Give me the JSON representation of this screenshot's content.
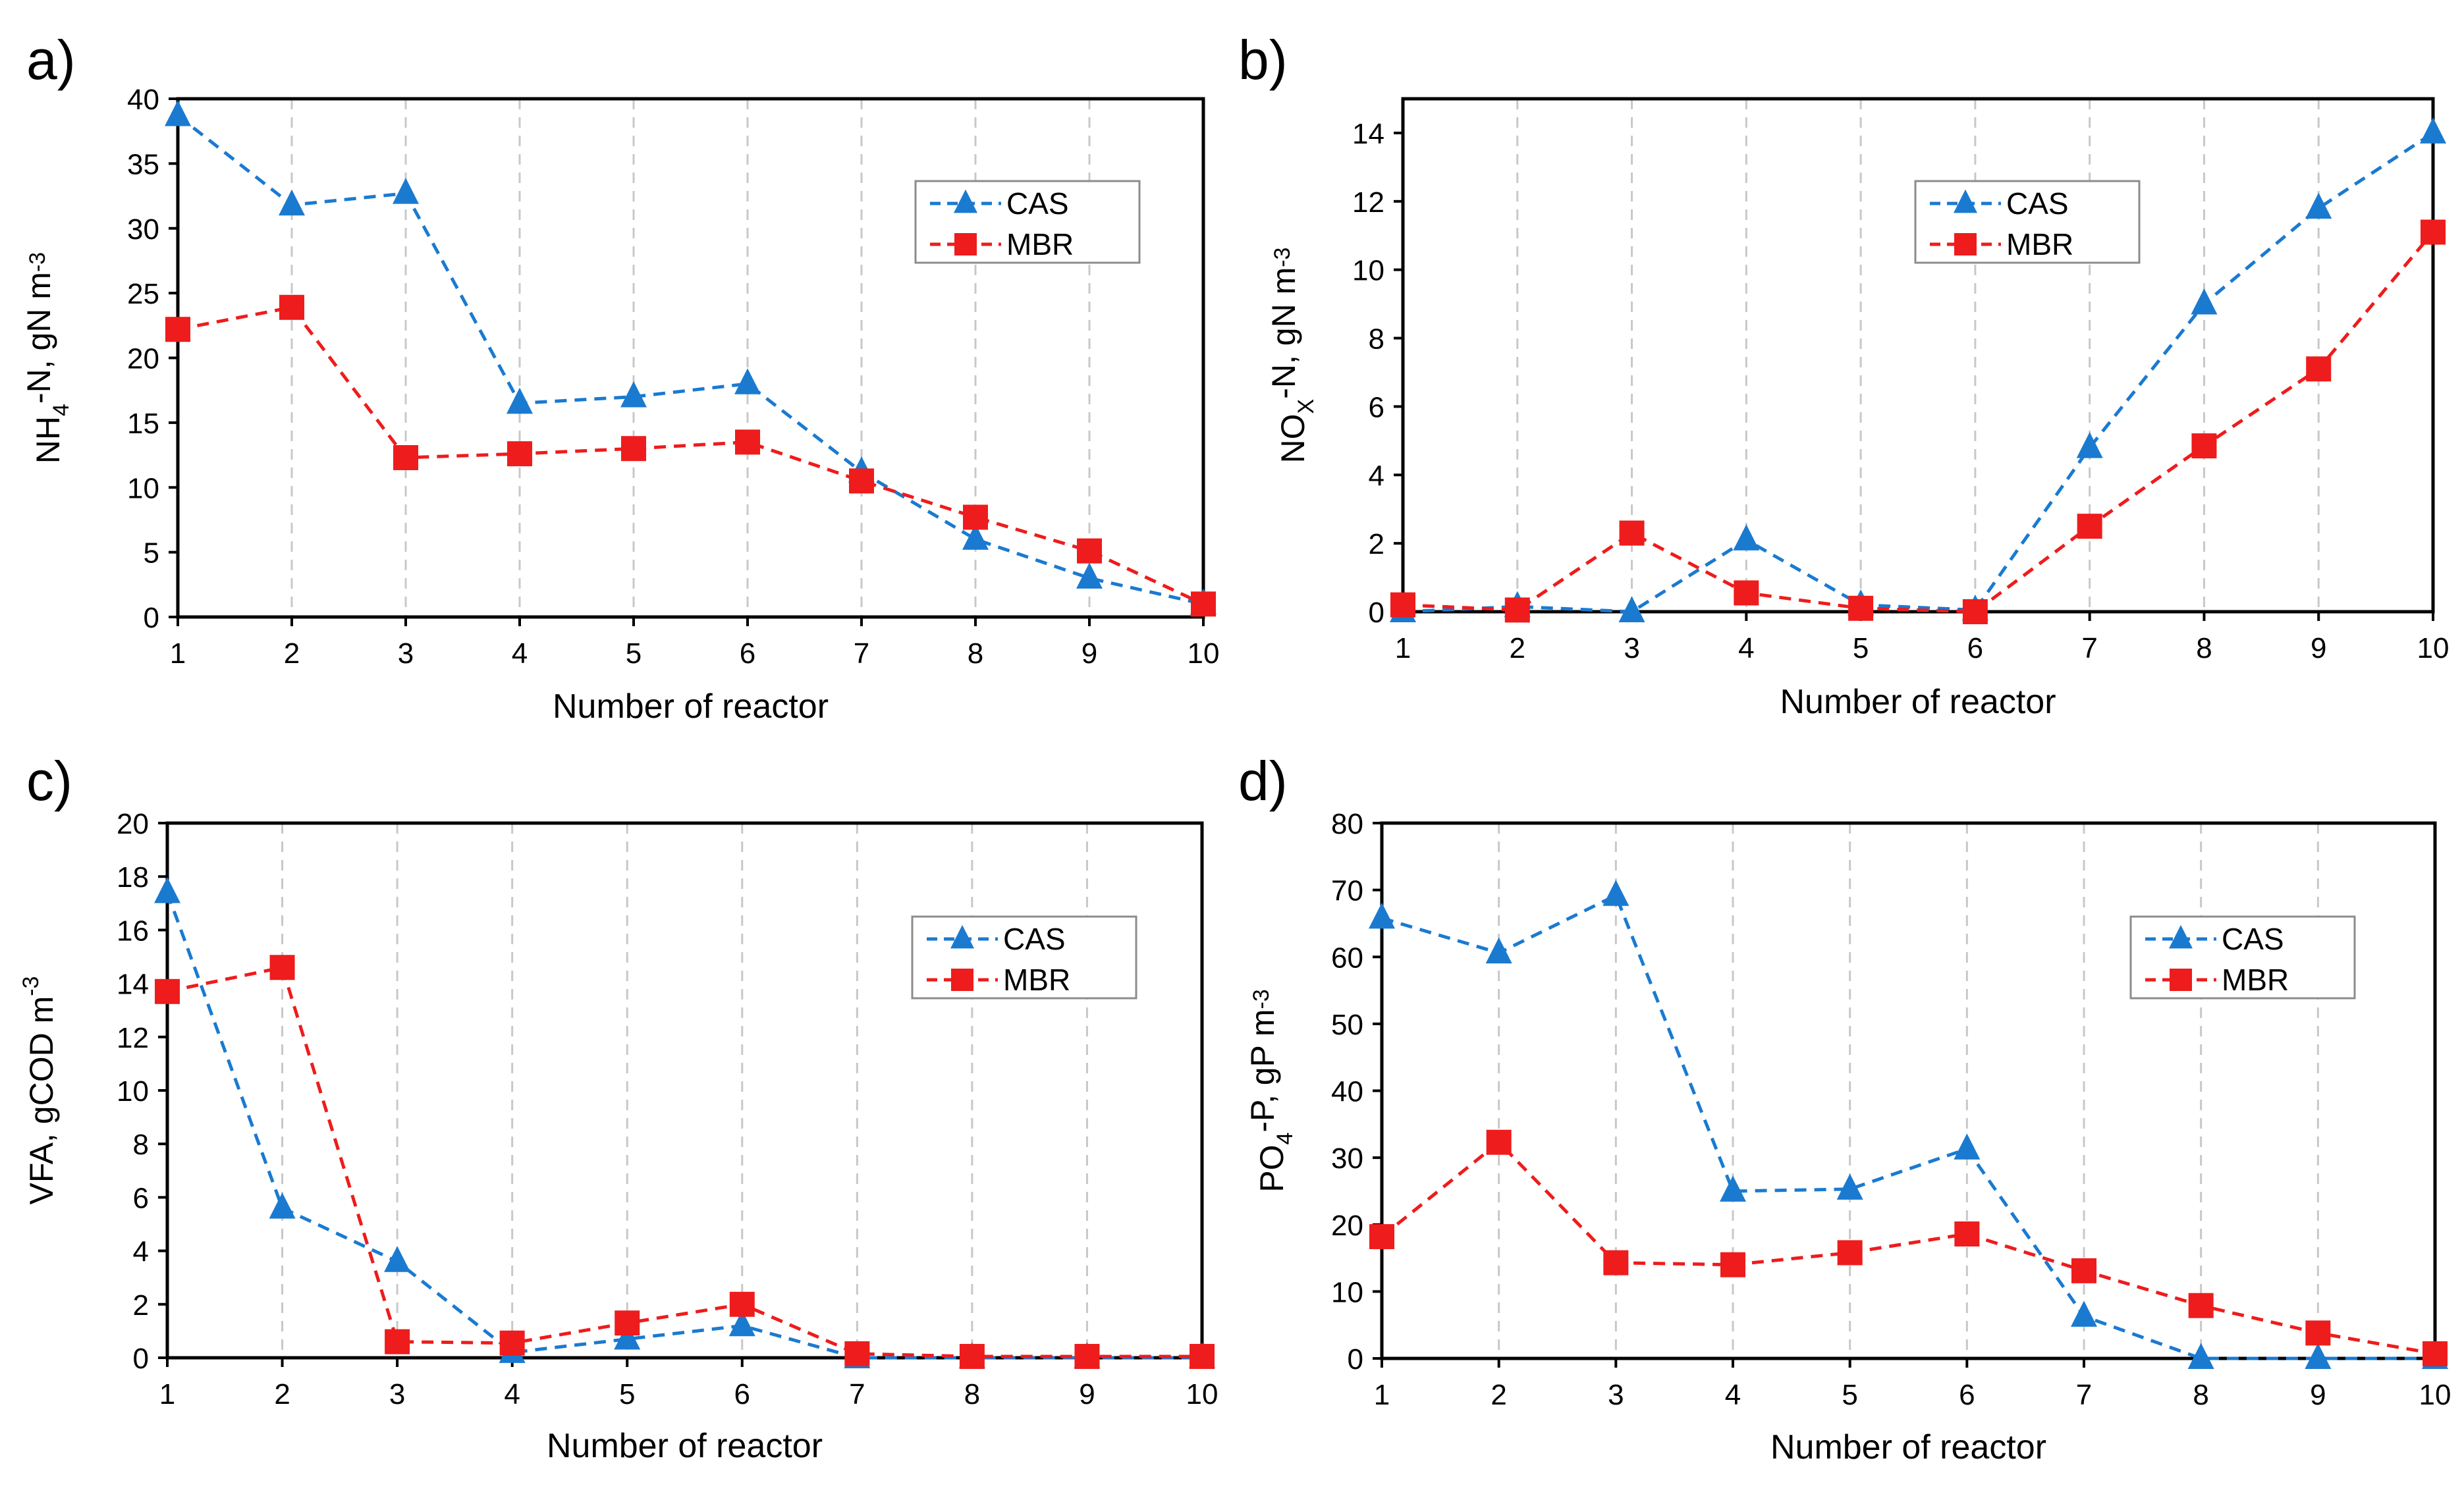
{
  "figure": {
    "colors": {
      "CAS": "#1a7ad0",
      "MBR": "#ee1c1c",
      "grid": "#c8c8c8",
      "axis": "#000000"
    },
    "panels": [
      {
        "panel_label": "a)",
        "ylabel_main": "NH",
        "ylabel_sub": "4",
        "ylabel_rest": "-N, gN m",
        "ylabel_sup": "-3"
      },
      {
        "panel_label": "b)",
        "ylabel_main": "NO",
        "ylabel_sub": "X",
        "ylabel_rest": "-N, gN m",
        "ylabel_sup": "-3"
      },
      {
        "panel_label": "c)",
        "ylabel_main": "VFA, gCOD m",
        "ylabel_sub": "",
        "ylabel_rest": "",
        "ylabel_sup": "-3"
      },
      {
        "panel_label": "d)",
        "ylabel_main": "PO",
        "ylabel_sub": "4",
        "ylabel_rest": "-P, gP m",
        "ylabel_sup": "-3"
      }
    ]
  },
  "chart_data": [
    {
      "type": "line",
      "panel": "a)",
      "xlabel": "Number of reactor",
      "ylabel": "NH4-N, gN m-3",
      "x": [
        1,
        2,
        3,
        4,
        5,
        6,
        7,
        8,
        9,
        10
      ],
      "ylim": [
        0,
        40
      ],
      "yticks": [
        0,
        5,
        10,
        15,
        20,
        25,
        30,
        35,
        40
      ],
      "legend": "upper-right",
      "grid": "vertical dashed",
      "series": [
        {
          "name": "CAS",
          "marker": "triangle",
          "values": [
            38.7,
            31.8,
            32.7,
            16.5,
            17.0,
            18.0,
            11.2,
            6.0,
            3.0,
            1.0
          ]
        },
        {
          "name": "MBR",
          "marker": "square",
          "values": [
            22.2,
            23.9,
            12.3,
            12.6,
            13.0,
            13.5,
            10.5,
            7.7,
            5.1,
            1.0
          ]
        }
      ]
    },
    {
      "type": "line",
      "panel": "b)",
      "xlabel": "Number of reactor",
      "ylabel": "NOX-N, gN m-3",
      "x": [
        1,
        2,
        3,
        4,
        5,
        6,
        7,
        8,
        9,
        10
      ],
      "ylim": [
        0,
        15
      ],
      "yticks": [
        0,
        2,
        4,
        6,
        8,
        10,
        12,
        14
      ],
      "legend": "upper-center",
      "grid": "vertical dashed",
      "series": [
        {
          "name": "CAS",
          "marker": "triangle",
          "values": [
            0.0,
            0.15,
            0.0,
            2.1,
            0.2,
            0.05,
            4.8,
            9.0,
            11.8,
            14.0
          ]
        },
        {
          "name": "MBR",
          "marker": "square",
          "values": [
            0.2,
            0.05,
            2.3,
            0.55,
            0.1,
            0.0,
            2.5,
            4.85,
            7.1,
            11.1
          ]
        }
      ]
    },
    {
      "type": "line",
      "panel": "c)",
      "xlabel": "Number of reactor",
      "ylabel": "VFA, gCOD m-3",
      "x": [
        1,
        2,
        3,
        4,
        5,
        6,
        7,
        8,
        9,
        10
      ],
      "ylim": [
        0,
        20
      ],
      "yticks": [
        0,
        2,
        4,
        6,
        8,
        10,
        12,
        14,
        16,
        18,
        20
      ],
      "legend": "upper-right",
      "grid": "vertical dashed",
      "series": [
        {
          "name": "CAS",
          "marker": "triangle",
          "values": [
            17.4,
            5.6,
            3.6,
            0.2,
            0.7,
            1.2,
            0.0,
            0.0,
            0.0,
            0.0
          ]
        },
        {
          "name": "MBR",
          "marker": "square",
          "values": [
            13.7,
            14.6,
            0.6,
            0.55,
            1.3,
            2.0,
            0.15,
            0.05,
            0.05,
            0.05
          ]
        }
      ]
    },
    {
      "type": "line",
      "panel": "d)",
      "xlabel": "Number of reactor",
      "ylabel": "PO4-P, gP m-3",
      "x": [
        1,
        2,
        3,
        4,
        5,
        6,
        7,
        8,
        9,
        10
      ],
      "ylim": [
        0,
        80
      ],
      "yticks": [
        0,
        10,
        20,
        30,
        40,
        50,
        60,
        70,
        80
      ],
      "legend": "upper-right",
      "grid": "vertical dashed",
      "series": [
        {
          "name": "CAS",
          "marker": "triangle",
          "values": [
            65.8,
            60.6,
            69.2,
            25.0,
            25.3,
            31.3,
            6.3,
            0.0,
            0.0,
            0.0
          ]
        },
        {
          "name": "MBR",
          "marker": "square",
          "values": [
            18.2,
            32.3,
            14.3,
            14.0,
            15.8,
            18.6,
            13.1,
            7.9,
            3.8,
            0.7
          ]
        }
      ]
    }
  ]
}
